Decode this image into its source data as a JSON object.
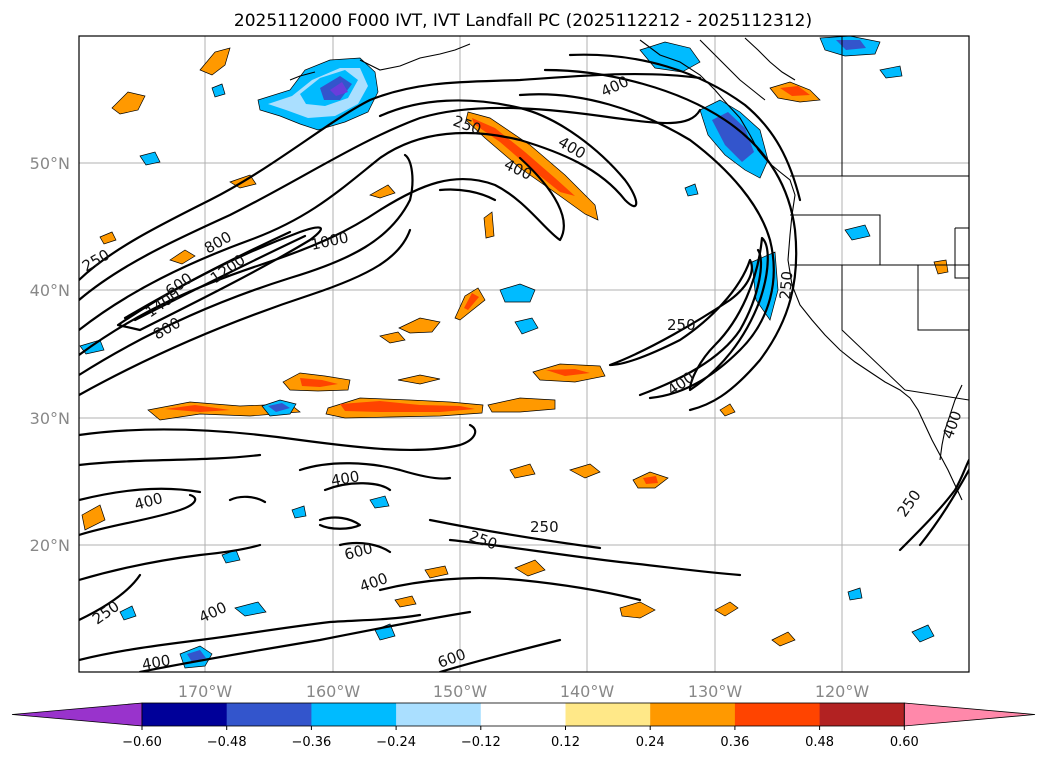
{
  "title": "2025112000 F000 IVT, IVT Landfall PC (2025112212 - 2025112312)",
  "lat_labels": [
    "50°N",
    "40°N",
    "30°N",
    "20°N"
  ],
  "lon_labels": [
    "170°W",
    "160°W",
    "150°W",
    "140°W",
    "130°W",
    "120°W"
  ],
  "colorbar": {
    "ticks": [
      "−0.60",
      "−0.48",
      "−0.36",
      "−0.24",
      "−0.12",
      "0.12",
      "0.24",
      "0.36",
      "0.48",
      "0.60"
    ],
    "colors": [
      "#9933cc",
      "#000099",
      "#3355cc",
      "#00bbff",
      "#aadfff",
      "#ffffff",
      "#ffe888",
      "#ff9900",
      "#ff4400",
      "#b22222",
      "#ff88aa"
    ]
  },
  "shading_colors": {
    "orange": "#ff9900",
    "red": "#ff4400",
    "yellow": "#ffe888",
    "blue": "#00bbff",
    "light_blue": "#aadfff",
    "dark_blue": "#3355cc",
    "purple": "#6a3ddb"
  },
  "ivt_contour_labels": [
    "250",
    "250",
    "250",
    "250",
    "250",
    "250",
    "250",
    "250",
    "400",
    "400",
    "400",
    "400",
    "400",
    "400",
    "400",
    "400",
    "400",
    "400",
    "600",
    "600",
    "600",
    "800",
    "800",
    "1000",
    "1200",
    "1400"
  ]
}
